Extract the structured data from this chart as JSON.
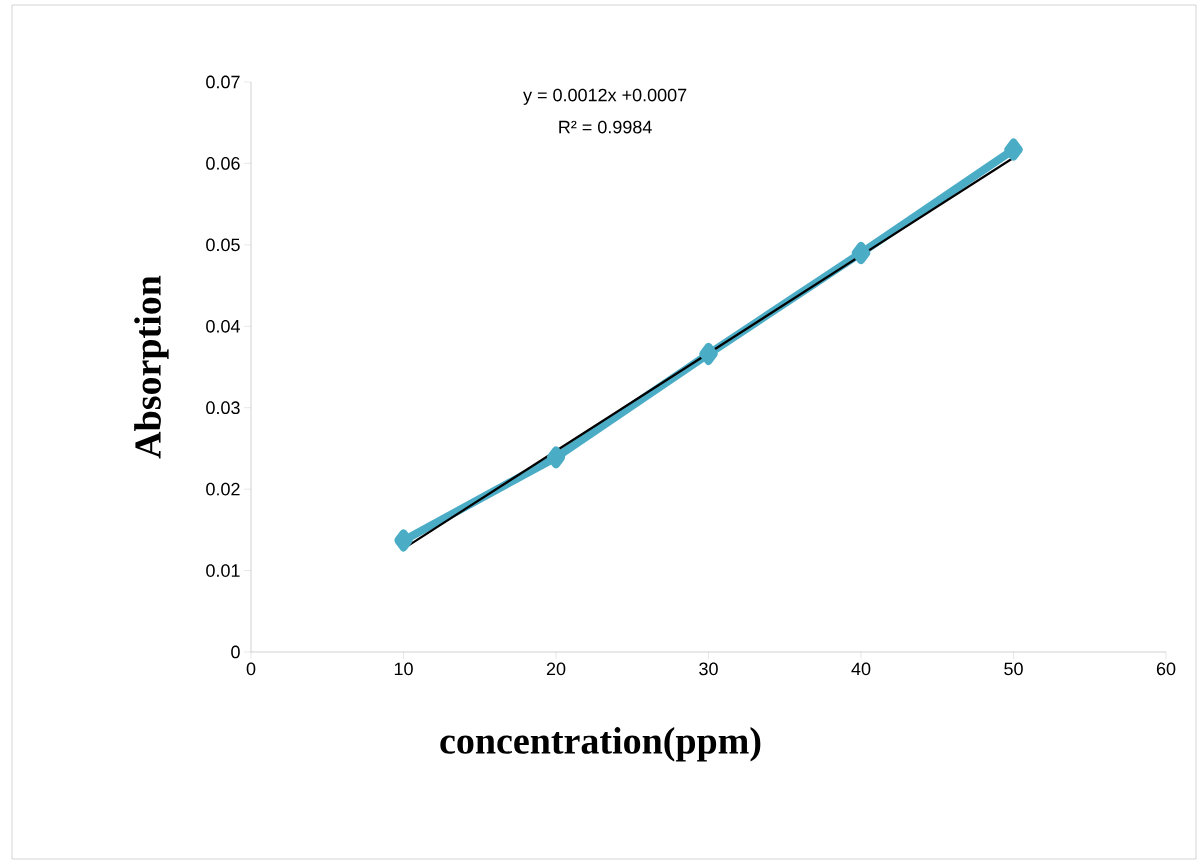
{
  "chart_data": {
    "type": "line",
    "xlabel": "concentration(ppm)",
    "ylabel": "Absorption",
    "x": [
      10,
      20,
      30,
      40,
      50
    ],
    "series": [
      {
        "color": "#4bacc6",
        "values": [
          0.0137,
          0.0239,
          0.0366,
          0.049,
          0.0617
        ],
        "marker": "diamond"
      },
      {
        "type": "line",
        "x": [
          10,
          50
        ],
        "color": "#000000",
        "values": [
          0.0127,
          0.0607
        ],
        "marker": "none"
      }
    ],
    "annotations": [
      "y = 0.0012x +0.0007",
      "R² = 0.9984"
    ],
    "xlim": [
      0,
      60
    ],
    "xticks": [
      0,
      10,
      20,
      30,
      40,
      50,
      60
    ],
    "ylim": [
      0,
      0.07
    ],
    "yticks": [
      0,
      0.01,
      0.02,
      0.03,
      0.04,
      0.05,
      0.06,
      0.07
    ],
    "grid": false
  }
}
